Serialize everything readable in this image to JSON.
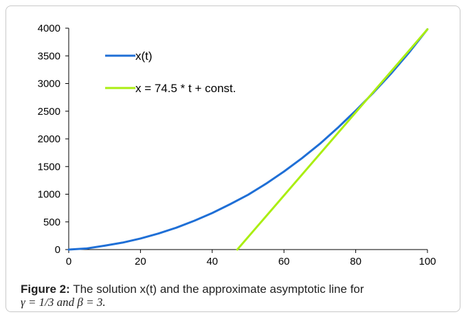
{
  "chart_data": {
    "type": "line",
    "xlim": [
      0,
      100
    ],
    "ylim": [
      0,
      4000
    ],
    "xticks": [
      0,
      20,
      40,
      60,
      80,
      100
    ],
    "yticks": [
      0,
      500,
      1000,
      1500,
      2000,
      2500,
      3000,
      3500,
      4000
    ],
    "grid": false,
    "legend_placement": "top-left",
    "series": [
      {
        "name": "x(t)",
        "color": "#1f6fd6",
        "x": [
          0,
          5,
          10,
          15,
          20,
          25,
          30,
          35,
          40,
          45,
          50,
          55,
          60,
          65,
          70,
          75,
          80,
          85,
          90,
          95,
          100
        ],
        "y": [
          0,
          20,
          70,
          125,
          200,
          290,
          395,
          520,
          660,
          820,
          990,
          1190,
          1410,
          1650,
          1910,
          2200,
          2510,
          2840,
          3190,
          3570,
          3980
        ]
      },
      {
        "name": "x = 74.5 * t  +  const.",
        "color": "#aaee11",
        "x": [
          47,
          100
        ],
        "y": [
          0,
          3980
        ]
      }
    ]
  },
  "caption": {
    "label": "Figure 2:",
    "text": " The solution x(t) and the approximate asymptotic line for",
    "math": "γ = 1/3  and  β = 3."
  }
}
